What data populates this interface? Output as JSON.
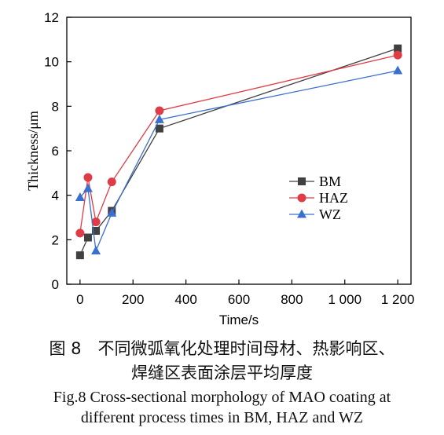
{
  "chart_data": {
    "type": "line",
    "xlabel": "Time/s",
    "ylabel": "Thickness/μm",
    "xlim": [
      -50,
      1250
    ],
    "ylim": [
      0,
      12
    ],
    "xticks": [
      0,
      200,
      400,
      600,
      800,
      1000,
      1200
    ],
    "xtick_labels": [
      "0",
      "200",
      "400",
      "600",
      "800",
      "1 000",
      "1 200"
    ],
    "yticks": [
      0,
      2,
      4,
      6,
      8,
      10,
      12
    ],
    "ytick_labels": [
      "0",
      "2",
      "4",
      "6",
      "8",
      "10",
      "12"
    ],
    "grid": false,
    "legend_position": "center-right",
    "x": [
      0,
      30,
      60,
      120,
      300,
      1200
    ],
    "series": [
      {
        "name": "BM",
        "marker": "square",
        "color": "#404040",
        "values": [
          1.3,
          2.1,
          2.4,
          3.3,
          7.0,
          10.6
        ]
      },
      {
        "name": "HAZ",
        "marker": "circle",
        "color": "#e03c46",
        "values": [
          2.3,
          4.8,
          2.8,
          4.6,
          7.8,
          10.3
        ]
      },
      {
        "name": "WZ",
        "marker": "triangle",
        "color": "#3a6fd0",
        "values": [
          3.9,
          4.3,
          1.5,
          3.2,
          7.4,
          9.6
        ]
      }
    ]
  },
  "caption": {
    "cn_line1": "图 8　不同微弧氧化处理时间母材、热影响区、",
    "cn_line2": "焊缝区表面涂层平均厚度",
    "en_line1": "Fig.8 Cross-sectional morphology of MAO coating at",
    "en_line2": "different process times in BM, HAZ and WZ"
  }
}
